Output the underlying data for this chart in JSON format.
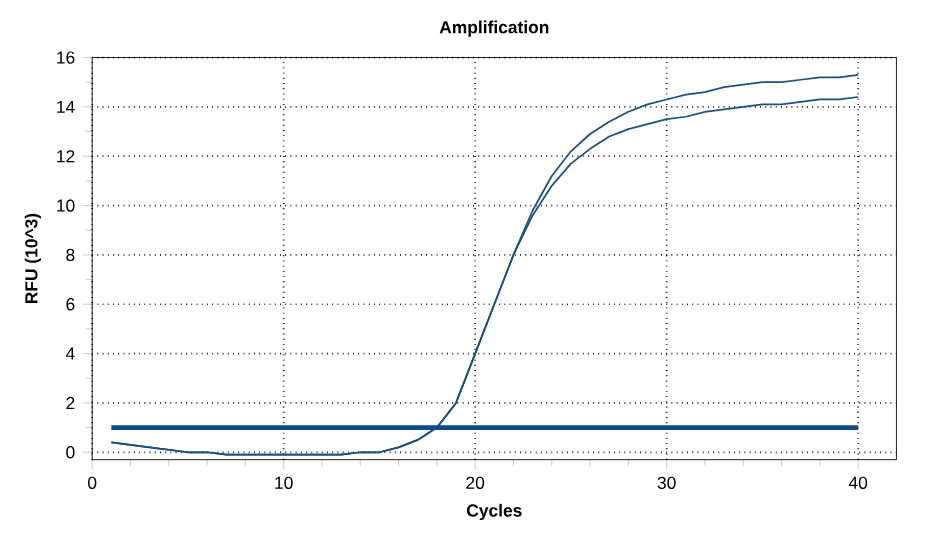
{
  "chart_data": {
    "type": "line",
    "title": "Amplification",
    "xlabel": "Cycles",
    "ylabel": "RFU (10^3)",
    "xlim": [
      0,
      42
    ],
    "ylim": [
      -0.3,
      16
    ],
    "xticks": [
      0,
      10,
      20,
      30,
      40
    ],
    "yticks": [
      0,
      2,
      4,
      6,
      8,
      10,
      12,
      14,
      16
    ],
    "grid": true,
    "marker": "none",
    "line_style": "solid",
    "series": [
      {
        "color": "#1f4e79",
        "x": [
          1,
          2,
          3,
          4,
          5,
          6,
          7,
          8,
          9,
          10,
          11,
          12,
          13,
          14,
          15,
          16,
          17,
          18,
          19,
          20,
          21,
          22,
          23,
          24,
          25,
          26,
          27,
          28,
          29,
          30,
          31,
          32,
          33,
          34,
          35,
          36,
          37,
          38,
          39,
          40
        ],
        "values": [
          0.4,
          0.3,
          0.2,
          0.1,
          0,
          0,
          -0.1,
          -0.1,
          -0.1,
          -0.1,
          -0.1,
          -0.1,
          -0.1,
          0,
          0,
          0.2,
          0.5,
          1.0,
          2.0,
          4.0,
          6.0,
          8.0,
          9.8,
          11.2,
          12.2,
          12.9,
          13.4,
          13.8,
          14.1,
          14.3,
          14.5,
          14.6,
          14.8,
          14.9,
          15.0,
          15.0,
          15.1,
          15.2,
          15.2,
          15.3
        ]
      },
      {
        "color": "#1f4e79",
        "x": [
          1,
          2,
          3,
          4,
          5,
          6,
          7,
          8,
          9,
          10,
          11,
          12,
          13,
          14,
          15,
          16,
          17,
          18,
          19,
          20,
          21,
          22,
          23,
          24,
          25,
          26,
          27,
          28,
          29,
          30,
          31,
          32,
          33,
          34,
          35,
          36,
          37,
          38,
          39,
          40
        ],
        "values": [
          0.4,
          0.3,
          0.2,
          0.1,
          0,
          0,
          -0.1,
          -0.1,
          -0.1,
          -0.1,
          -0.1,
          -0.1,
          -0.1,
          0,
          0,
          0.2,
          0.5,
          1.0,
          2.0,
          4.0,
          6.0,
          8.0,
          9.6,
          10.8,
          11.7,
          12.3,
          12.8,
          13.1,
          13.3,
          13.5,
          13.6,
          13.8,
          13.9,
          14.0,
          14.1,
          14.1,
          14.2,
          14.3,
          14.3,
          14.4
        ]
      },
      {
        "color": "#0d4a7f",
        "x": [
          1,
          40
        ],
        "values": [
          1.0,
          1.0
        ]
      }
    ]
  }
}
